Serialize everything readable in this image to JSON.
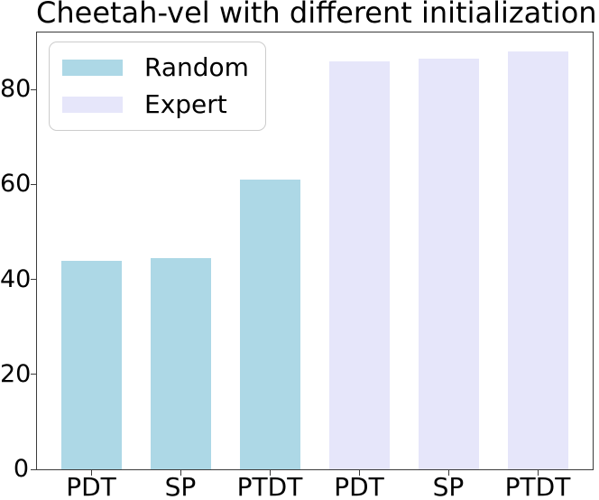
{
  "page_title": "Cheetah-vel with different initialization",
  "chart_data": {
    "type": "bar",
    "title": "Cheetah-vel with different initialization",
    "x_tick_labels": [
      "PDT",
      "SP",
      "PTDT",
      "PDT",
      "SP",
      "PTDT"
    ],
    "series": [
      {
        "name": "Random",
        "color": "#ADD8E6",
        "categories": [
          "PDT",
          "SP",
          "PTDT"
        ],
        "values": [
          44,
          44.5,
          61
        ]
      },
      {
        "name": "Expert",
        "color": "#E6E6FA",
        "categories": [
          "PDT",
          "SP",
          "PTDT"
        ],
        "values": [
          86,
          86.5,
          88
        ]
      }
    ],
    "yticks": [
      0,
      20,
      40,
      60,
      80
    ],
    "ylim": [
      0,
      92
    ],
    "grid": false,
    "legend": {
      "position": "upper left",
      "entries": [
        {
          "label": "Random",
          "color": "#ADD8E6"
        },
        {
          "label": "Expert",
          "color": "#E6E6FA"
        }
      ]
    },
    "axis_color": "#3b3b3b",
    "text_color": "#000000",
    "background": "#ffffff"
  }
}
